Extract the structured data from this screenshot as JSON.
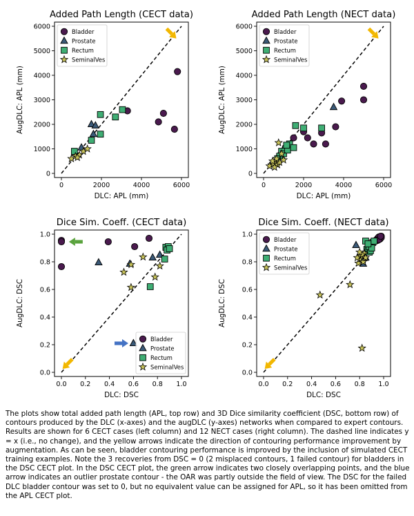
{
  "colors": {
    "bladder": "#4a1a4e",
    "prostate": "#3b5a78",
    "rectum": "#3fae74",
    "seminal": "#c7c25a",
    "arrow_yellow": "#f2b700",
    "arrow_green": "#5aa33d",
    "arrow_blue": "#4472c4"
  },
  "chart_data": [
    {
      "id": "apl_cect",
      "type": "scatter",
      "title": "Added Path Length (CECT data)",
      "xlabel": "DLC: APL (mm)",
      "ylabel": "AugDLC: APL (mm)",
      "xlim": [
        0,
        6000
      ],
      "ylim": [
        0,
        6000
      ],
      "xticks": [
        0,
        2000,
        4000,
        6000
      ],
      "yticks": [
        0,
        1000,
        2000,
        3000,
        4000,
        5000,
        6000
      ],
      "legend": "top-left",
      "identity_line": true,
      "arrows": [
        {
          "color": "yellow",
          "direction": "down-right",
          "at": [
            5500,
            5700
          ]
        }
      ],
      "series": [
        {
          "name": "Bladder",
          "marker": "circle",
          "points": [
            [
              3300,
              2550
            ],
            [
              5100,
              2450
            ],
            [
              5800,
              4150
            ],
            [
              5650,
              1800
            ],
            [
              4850,
              2100
            ]
          ]
        },
        {
          "name": "Prostate",
          "marker": "triangle",
          "points": [
            [
              1500,
              2000
            ],
            [
              1700,
              1950
            ],
            [
              1600,
              1600
            ],
            [
              1000,
              1050
            ]
          ]
        },
        {
          "name": "Rectum",
          "marker": "square",
          "points": [
            [
              1950,
              2400
            ],
            [
              3050,
              2600
            ],
            [
              2700,
              2300
            ],
            [
              1950,
              1600
            ],
            [
              1500,
              1350
            ],
            [
              650,
              900
            ]
          ]
        },
        {
          "name": "SeminalVes",
          "marker": "star",
          "points": [
            [
              500,
              600
            ],
            [
              700,
              700
            ],
            [
              900,
              750
            ],
            [
              1100,
              900
            ],
            [
              1300,
              1000
            ],
            [
              800,
              650
            ]
          ]
        }
      ]
    },
    {
      "id": "apl_nect",
      "type": "scatter",
      "title": "Added Path Length (NECT data)",
      "xlabel": "DLC: APL (mm)",
      "ylabel": "AugDLC: APL (mm)",
      "xlim": [
        0,
        6000
      ],
      "ylim": [
        0,
        6000
      ],
      "xticks": [
        0,
        2000,
        4000,
        6000
      ],
      "yticks": [
        0,
        1000,
        2000,
        3000,
        4000,
        5000,
        6000
      ],
      "legend": "top-left",
      "identity_line": true,
      "arrows": [
        {
          "color": "yellow",
          "direction": "down-right",
          "at": [
            5500,
            5700
          ]
        }
      ],
      "series": [
        {
          "name": "Bladder",
          "marker": "circle",
          "points": [
            [
              5000,
              3550
            ],
            [
              5000,
              3000
            ],
            [
              3900,
              2950
            ],
            [
              3600,
              1900
            ],
            [
              2900,
              1650
            ],
            [
              2000,
              1700
            ],
            [
              2200,
              1450
            ],
            [
              2500,
              1200
            ],
            [
              3100,
              1200
            ],
            [
              1500,
              1450
            ],
            [
              1300,
              1150
            ],
            [
              1100,
              1050
            ]
          ]
        },
        {
          "name": "Prostate",
          "marker": "triangle",
          "points": [
            [
              3500,
              2700
            ],
            [
              1000,
              1000
            ],
            [
              900,
              700
            ],
            [
              600,
              500
            ]
          ]
        },
        {
          "name": "Rectum",
          "marker": "square",
          "points": [
            [
              1600,
              1950
            ],
            [
              2000,
              1850
            ],
            [
              2900,
              1850
            ],
            [
              1300,
              1200
            ],
            [
              1100,
              1000
            ],
            [
              900,
              900
            ],
            [
              800,
              700
            ],
            [
              1000,
              800
            ],
            [
              1200,
              950
            ],
            [
              700,
              600
            ],
            [
              1500,
              1050
            ],
            [
              1150,
              1150
            ]
          ]
        },
        {
          "name": "SeminalVes",
          "marker": "star",
          "points": [
            [
              750,
              1250
            ],
            [
              600,
              450
            ],
            [
              400,
              350
            ],
            [
              300,
              300
            ],
            [
              500,
              400
            ],
            [
              450,
              500
            ],
            [
              700,
              350
            ],
            [
              800,
              450
            ],
            [
              1000,
              550
            ],
            [
              550,
              250
            ],
            [
              650,
              600
            ],
            [
              900,
              800
            ]
          ]
        }
      ]
    },
    {
      "id": "dsc_cect",
      "type": "scatter",
      "title": "Dice Sim. Coeff. (CECT data)",
      "xlabel": "DLC: DSC",
      "ylabel": "AugDLC: DSC",
      "xlim": [
        0,
        1.0
      ],
      "ylim": [
        0,
        1.0
      ],
      "xticks": [
        0.0,
        0.2,
        0.4,
        0.6,
        0.8,
        1.0
      ],
      "yticks": [
        0.0,
        0.2,
        0.4,
        0.6,
        0.8,
        1.0
      ],
      "legend": "bottom-right",
      "identity_line": true,
      "arrows": [
        {
          "color": "yellow",
          "direction": "down-left",
          "at": [
            0.05,
            0.06
          ]
        },
        {
          "color": "green",
          "direction": "left",
          "at": [
            0.12,
            0.945
          ]
        },
        {
          "color": "blue",
          "direction": "right",
          "at": [
            0.5,
            0.21
          ]
        }
      ],
      "series": [
        {
          "name": "Bladder",
          "marker": "circle",
          "points": [
            [
              0.0,
              0.955
            ],
            [
              0.0,
              0.945
            ],
            [
              0.0,
              0.765
            ],
            [
              0.39,
              0.945
            ],
            [
              0.61,
              0.91
            ],
            [
              0.73,
              0.97
            ]
          ]
        },
        {
          "name": "Prostate",
          "marker": "triangle",
          "points": [
            [
              0.31,
              0.795
            ],
            [
              0.57,
              0.785
            ],
            [
              0.6,
              0.21
            ],
            [
              0.76,
              0.83
            ],
            [
              0.82,
              0.85
            ]
          ]
        },
        {
          "name": "Rectum",
          "marker": "square",
          "points": [
            [
              0.74,
              0.62
            ],
            [
              0.86,
              0.82
            ],
            [
              0.87,
              0.905
            ],
            [
              0.89,
              0.91
            ],
            [
              0.88,
              0.885
            ],
            [
              0.9,
              0.895
            ]
          ]
        },
        {
          "name": "SeminalVes",
          "marker": "star",
          "points": [
            [
              0.52,
              0.725
            ],
            [
              0.58,
              0.78
            ],
            [
              0.58,
              0.615
            ],
            [
              0.68,
              0.835
            ],
            [
              0.78,
              0.69
            ],
            [
              0.82,
              0.77
            ]
          ]
        }
      ]
    },
    {
      "id": "dsc_nect",
      "type": "scatter",
      "title": "Dice Sim. Coeff. (NECT data)",
      "xlabel": "DLC: DSC",
      "ylabel": "AugDLC: DSC",
      "xlim": [
        0,
        1.0
      ],
      "ylim": [
        0,
        1.0
      ],
      "xticks": [
        0.0,
        0.2,
        0.4,
        0.6,
        0.8,
        1.0
      ],
      "yticks": [
        0.0,
        0.2,
        0.4,
        0.6,
        0.8,
        1.0
      ],
      "legend": "top-left",
      "identity_line": true,
      "arrows": [
        {
          "color": "yellow",
          "direction": "down-left",
          "at": [
            0.05,
            0.06
          ]
        }
      ],
      "series": [
        {
          "name": "Bladder",
          "marker": "circle",
          "points": [
            [
              0.97,
              0.98
            ],
            [
              0.98,
              0.985
            ],
            [
              0.96,
              0.975
            ],
            [
              0.95,
              0.97
            ],
            [
              0.97,
              0.965
            ],
            [
              0.94,
              0.96
            ],
            [
              0.96,
              0.98
            ],
            [
              0.97,
              0.97
            ],
            [
              0.98,
              0.975
            ],
            [
              0.95,
              0.955
            ],
            [
              0.96,
              0.96
            ],
            [
              0.975,
              0.985
            ]
          ]
        },
        {
          "name": "Prostate",
          "marker": "triangle",
          "points": [
            [
              0.77,
              0.92
            ],
            [
              0.83,
              0.785
            ],
            [
              0.85,
              0.83
            ],
            [
              0.86,
              0.87
            ],
            [
              0.82,
              0.81
            ],
            [
              0.88,
              0.88
            ]
          ]
        },
        {
          "name": "Rectum",
          "marker": "square",
          "points": [
            [
              0.85,
              0.95
            ],
            [
              0.89,
              0.92
            ],
            [
              0.86,
              0.89
            ],
            [
              0.88,
              0.87
            ],
            [
              0.87,
              0.9
            ],
            [
              0.89,
              0.88
            ],
            [
              0.9,
              0.93
            ],
            [
              0.91,
              0.94
            ],
            [
              0.88,
              0.91
            ],
            [
              0.9,
              0.9
            ],
            [
              0.92,
              0.95
            ],
            [
              0.87,
              0.93
            ]
          ]
        },
        {
          "name": "SeminalVes",
          "marker": "star",
          "points": [
            [
              0.47,
              0.56
            ],
            [
              0.72,
              0.635
            ],
            [
              0.82,
              0.175
            ],
            [
              0.79,
              0.79
            ],
            [
              0.8,
              0.82
            ],
            [
              0.81,
              0.84
            ],
            [
              0.83,
              0.8
            ],
            [
              0.84,
              0.86
            ],
            [
              0.82,
              0.85
            ],
            [
              0.85,
              0.83
            ],
            [
              0.78,
              0.83
            ],
            [
              0.8,
              0.87
            ]
          ]
        }
      ]
    }
  ],
  "caption": "The plots show total added path length (APL, top row) and 3D Dice similarity coefficient (DSC, bottom row) of contours produced by the DLC (x-axes) and the augDLC (y-axes) networks when compared to expert contours. Results are shown for 6 CECT cases (left column) and 12 NECT cases (right column). The dashed line indicates y = x (i.e., no change), and the yellow arrows indicate the direction of contouring performance improvement by augmentation. As can be seen, bladder contouring performance is improved by the inclusion of simulated CECT training examples. Note the 3 recoveries from DSC = 0 (2 misplaced contours, 1 failed contour) for bladders in the DSC CECT plot. In the DSC CECT plot, the green arrow indicates two closely overlapping points, and the blue arrow indicates an outlier prostate contour - the OAR was partly outside the field of view. The DSC for the failed DLC bladder contour was set to 0, but no equivalent value can be assigned for APL, so it has been omitted from the APL CECT plot."
}
